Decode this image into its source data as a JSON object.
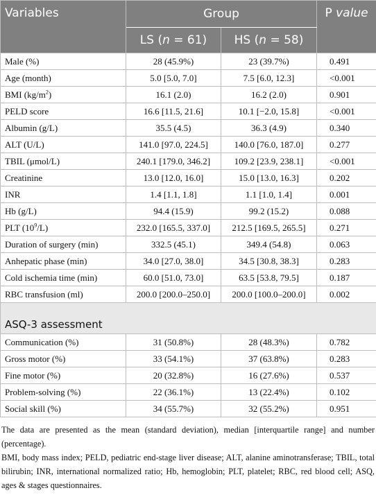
{
  "table": {
    "header": {
      "variables": "Variables",
      "group": "Group",
      "ls": [
        "LS (",
        "n",
        " = 61)"
      ],
      "hs": [
        "HS (",
        "n",
        " = 58)"
      ],
      "p_value": [
        "P",
        " value"
      ]
    },
    "rows": [
      {
        "label": "Male (%)",
        "ls": "28 (45.9%)",
        "hs": "23 (39.7%)",
        "p": "0.491"
      },
      {
        "label": "Age (month)",
        "ls": "5.0 [5.0, 7.0]",
        "hs": "7.5 [6.0, 12.3]",
        "p": "<0.001"
      },
      {
        "label": [
          "BMI (kg/m",
          "2",
          ")"
        ],
        "ls": "16.1 (2.0)",
        "hs": "16.2 (2.0)",
        "p": "0.901"
      },
      {
        "label": "PELD score",
        "ls": "16.6 [11.5, 21.6]",
        "hs": "10.1 [−2.0, 15.8]",
        "p": "<0.001"
      },
      {
        "label": "Albumin (g/L)",
        "ls": "35.5 (4.5)",
        "hs": "36.3 (4.9)",
        "p": "0.340"
      },
      {
        "label": "ALT (U/L)",
        "ls": "141.0 [97.0, 224.5]",
        "hs": "140.0 [76.0, 187.0]",
        "p": "0.277"
      },
      {
        "label": "TBIL (μmol/L)",
        "ls": "240.1 [179.0, 346.2]",
        "hs": "109.2 [23.9, 238.1]",
        "p": "<0.001"
      },
      {
        "label": "Creatinine",
        "ls": "13.0 [12.0, 16.0]",
        "hs": "15.0 [13.0, 16.3]",
        "p": "0.202"
      },
      {
        "label": "INR",
        "ls": "1.4 [1.1, 1.8]",
        "hs": "1.1 [1.0, 1.4]",
        "p": "0.001"
      },
      {
        "label": "Hb (g/L)",
        "ls": "94.4 (15.9)",
        "hs": "99.2 (15.2)",
        "p": "0.088"
      },
      {
        "label": [
          "PLT (10",
          "9",
          "/L)"
        ],
        "ls": "232.0 [165.5, 337.0]",
        "hs": "212.5 [169.5, 265.5]",
        "p": "0.271"
      },
      {
        "label": "Duration of surgery (min)",
        "ls": "332.5 (45.1)",
        "hs": "349.4 (54.8)",
        "p": "0.063"
      },
      {
        "label": "Anhepatic phase (min)",
        "ls": "34.0 [27.0, 38.0]",
        "hs": "34.5 [30.8, 38.3]",
        "p": "0.283"
      },
      {
        "label": "Cold ischemia time (min)",
        "ls": "60.0 [51.0, 73.0]",
        "hs": "63.5 [53.8, 79.5]",
        "p": "0.187"
      },
      {
        "label": "RBC transfusion (ml)",
        "ls": "200.0 [200.0–250.0]",
        "hs": "200.0 [100.0–200.0]",
        "p": "0.002"
      }
    ],
    "section": "ASQ-3 assessment",
    "asq_rows": [
      {
        "label": "Communication (%)",
        "ls": "31 (50.8%)",
        "hs": "28 (48.3%)",
        "p": "0.782"
      },
      {
        "label": "Gross motor (%)",
        "ls": "33 (54.1%)",
        "hs": "37 (63.8%)",
        "p": "0.283"
      },
      {
        "label": "Fine motor (%)",
        "ls": "20 (32.8%)",
        "hs": "16 (27.6%)",
        "p": "0.537"
      },
      {
        "label": "Problem-solving (%)",
        "ls": "22 (36.1%)",
        "hs": "13 (22.4%)",
        "p": "0.102"
      },
      {
        "label": "Social skill (%)",
        "ls": "34 (55.7%)",
        "hs": "32 (55.2%)",
        "p": "0.951"
      }
    ]
  },
  "notes": [
    "The data are presented as the mean (standard deviation), median [interquartile range] and number (percentage).",
    "BMI, body mass index; PELD, pediatric end-stage liver disease; ALT, alanine aminotransferase; TBIL, total bilirubin; INR, international normalized ratio; Hb, hemoglobin; PLT, platelet; RBC, red blood cell; ASQ, ages & stages questionnaires."
  ]
}
